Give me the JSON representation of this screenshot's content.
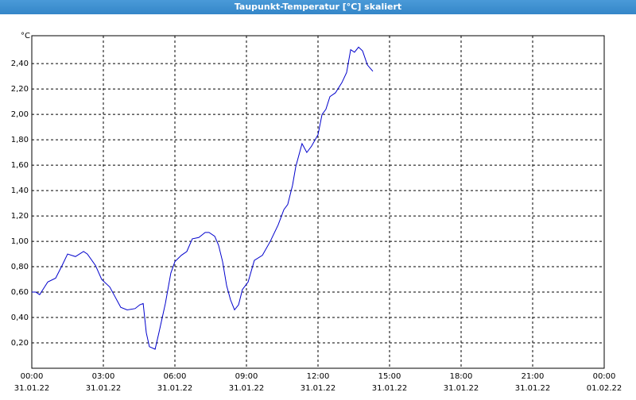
{
  "chart_data": {
    "type": "line",
    "title": "Taupunkt-Temperatur [°C] skaliert",
    "y_unit": "°C",
    "x": [
      0,
      0.17,
      0.33,
      0.5,
      0.67,
      1.0,
      1.27,
      1.5,
      1.83,
      2.17,
      2.33,
      2.67,
      2.93,
      3.27,
      3.5,
      3.73,
      4.0,
      4.33,
      4.53,
      4.67,
      4.8,
      4.93,
      5.17,
      5.33,
      5.6,
      5.83,
      6.0,
      6.27,
      6.5,
      6.73,
      7.0,
      7.27,
      7.43,
      7.67,
      7.83,
      8.0,
      8.17,
      8.33,
      8.5,
      8.67,
      8.83,
      9.07,
      9.33,
      9.67,
      10.0,
      10.33,
      10.57,
      10.73,
      10.93,
      11.07,
      11.33,
      11.53,
      11.73,
      12.0,
      12.17,
      12.33,
      12.5,
      12.73,
      13.0,
      13.2,
      13.37,
      13.53,
      13.7,
      13.87,
      14.07,
      14.3
    ],
    "series": [
      {
        "name": "Taupunkt-Temperatur",
        "color": "#0000cc",
        "values": [
          0.6,
          0.6,
          0.58,
          0.63,
          0.68,
          0.71,
          0.81,
          0.9,
          0.88,
          0.92,
          0.9,
          0.81,
          0.7,
          0.64,
          0.56,
          0.48,
          0.46,
          0.47,
          0.5,
          0.51,
          0.28,
          0.17,
          0.15,
          0.28,
          0.51,
          0.75,
          0.84,
          0.89,
          0.92,
          1.02,
          1.03,
          1.07,
          1.07,
          1.04,
          0.97,
          0.84,
          0.65,
          0.54,
          0.46,
          0.5,
          0.62,
          0.68,
          0.85,
          0.89,
          1.0,
          1.13,
          1.25,
          1.29,
          1.44,
          1.59,
          1.77,
          1.7,
          1.75,
          1.84,
          2.0,
          2.04,
          2.14,
          2.17,
          2.25,
          2.33,
          2.51,
          2.49,
          2.53,
          2.5,
          2.39,
          2.34
        ]
      }
    ],
    "xlim": [
      0,
      24
    ],
    "xticks": [
      {
        "value": 0,
        "label": "00:00"
      },
      {
        "value": 3,
        "label": "03:00"
      },
      {
        "value": 6,
        "label": "06:00"
      },
      {
        "value": 9,
        "label": "09:00"
      },
      {
        "value": 12,
        "label": "12:00"
      },
      {
        "value": 15,
        "label": "15:00"
      },
      {
        "value": 18,
        "label": "18:00"
      },
      {
        "value": 21,
        "label": "21:00"
      },
      {
        "value": 24,
        "label": "00:00"
      }
    ],
    "xtick_dates": [
      "31.01.22",
      "31.01.22",
      "31.01.22",
      "31.01.22",
      "31.01.22",
      "31.01.22",
      "31.01.22",
      "31.01.22",
      "01.02.22"
    ],
    "ylim": [
      0,
      2.62
    ],
    "yticks": [
      {
        "value": 0.2,
        "label": "0,20"
      },
      {
        "value": 0.4,
        "label": "0,40"
      },
      {
        "value": 0.6,
        "label": "0,60"
      },
      {
        "value": 0.8,
        "label": "0,80"
      },
      {
        "value": 1.0,
        "label": "1,00"
      },
      {
        "value": 1.2,
        "label": "1,20"
      },
      {
        "value": 1.4,
        "label": "1,40"
      },
      {
        "value": 1.6,
        "label": "1,60"
      },
      {
        "value": 1.8,
        "label": "1,80"
      },
      {
        "value": 2.0,
        "label": "2,00"
      },
      {
        "value": 2.2,
        "label": "2,20"
      },
      {
        "value": 2.4,
        "label": "2,40"
      }
    ],
    "grid": true
  }
}
